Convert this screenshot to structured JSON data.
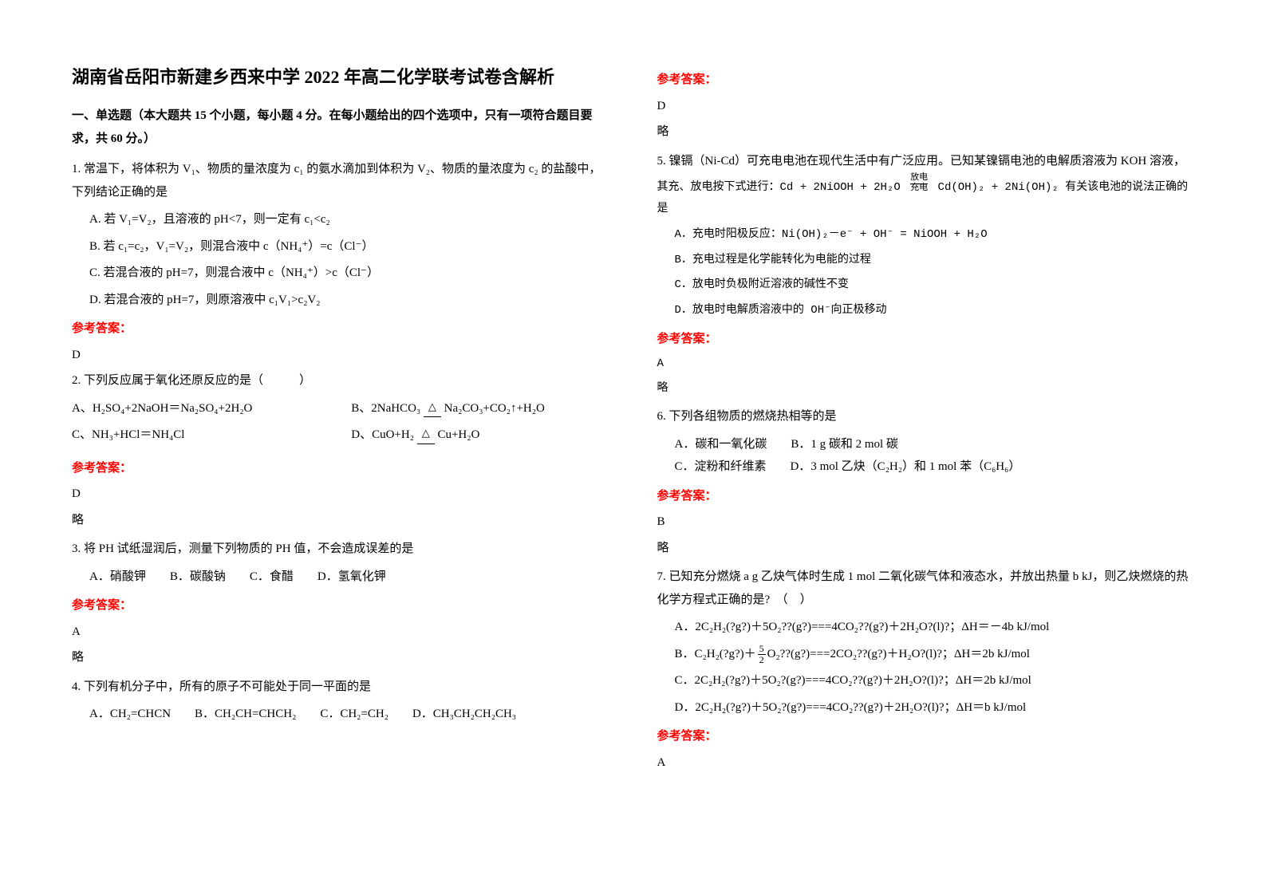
{
  "title": "湖南省岳阳市新建乡西来中学 2022 年高二化学联考试卷含解析",
  "section1": "一、单选题（本大题共 15 个小题，每小题 4 分。在每小题给出的四个选项中，只有一项符合题目要求，共 60 分。）",
  "q1": {
    "text": "1. 常温下，将体积为 V₁、物质的量浓度为 c₁ 的氨水滴加到体积为 V₂、物质的量浓度为 c₂ 的盐酸中，下列结论正确的是",
    "a": "A. 若 V₁=V₂，且溶液的 pH<7，则一定有 c₁<c₂",
    "b": "B. 若 c₁=c₂，V₁=V₂，则混合液中 c（NH₄⁺）=c（Cl⁻）",
    "c": "C. 若混合液的 pH=7，则混合液中 c（NH₄⁺）>c（Cl⁻）",
    "d": "D. 若混合液的 pH=7，则原溶液中 c₁V₁>c₂V₂"
  },
  "answer_label": "参考答案：",
  "q1_ans": "D",
  "q2": {
    "text": "2. 下列反应属于氧化还原反应的是（　　　）",
    "a": "A、H₂SO₄+2NaOH＝Na₂SO₄+2H₂O",
    "b_pre": "B、2NaHCO₃ ",
    "b_post": " Na₂CO₃+CO₂↑+H₂O",
    "c": "C、NH₃+HCl＝NH₄Cl",
    "d_pre": "D、CuO+H₂ ",
    "d_post": " Cu+H₂O"
  },
  "tri": "△",
  "q2_ans": "D",
  "略": "略",
  "q3": {
    "text": "3. 将 PH 试纸湿润后，测量下列物质的 PH 值，不会造成误差的是",
    "a": "A．硝酸钾",
    "b": "B．碳酸钠",
    "c": "C．食醋",
    "d": "D．氢氧化钾"
  },
  "q3_ans": "A",
  "q4": {
    "text": "4. 下列有机分子中，所有的原子不可能处于同一平面的是",
    "a": "A．CH₂=CHCN",
    "b": "B．CH₂CH=CHCH₂",
    "c": "C．CH₂=CH₂",
    "d": "D．CH₃CH₂CH₂CH₃"
  },
  "q4_ans": "D",
  "q5": {
    "text1": "5. 镍镉（Ni-Cd）可充电电池在现代生活中有广泛应用。已知某镍镉电池的电解质溶液为 KOH 溶液，",
    "text2_pre": "其充、放电按下式进行：Cd + 2NiOOH + 2H₂O ",
    "text2_post": " Cd(OH)₂ + 2Ni(OH)₂ 有关该电池的说法正确的是",
    "cond_top": "放电",
    "cond_bot": "充电",
    "a": "A．充电时阳极反应：Ni(OH)₂－e⁻ + OH⁻ = NiOOH + H₂O",
    "b": "B．充电过程是化学能转化为电能的过程",
    "c": "C．放电时负极附近溶液的碱性不变",
    "d": "D．放电时电解质溶液中的 OH⁻向正极移动"
  },
  "q5_ans": "A",
  "q6": {
    "text": "6. 下列各组物质的燃烧热相等的是",
    "a": "A．碳和一氧化碳",
    "b": "B．1 g 碳和 2 mol 碳",
    "c": "C．淀粉和纤维素",
    "d": "D．3 mol 乙炔（C₂H₂）和 1 mol 苯（C₆H₆）"
  },
  "q6_ans": "B",
  "q7": {
    "text": "7. 已知充分燃烧 a g 乙炔气体时生成 1 mol 二氧化碳气体和液态水，并放出热量 b kJ，则乙炔燃烧的热化学方程式正确的是?　（　）",
    "a": "A．2C₂H₂(?g?)＋5O₂??(g?)===4CO₂??(g?)＋2H₂O?(l)?；ΔH＝－4b kJ/mol",
    "b_pre": "B．C₂H₂(?g?)＋",
    "b_num": "5",
    "b_den": "2",
    "b_post": "O₂??(g?)===2CO₂??(g?)＋H₂O?(l)?；ΔH＝2b kJ/mol",
    "c": "C．2C₂H₂(?g?)＋5O₂?(g?)===4CO₂??(g?)＋2H₂O?(l)?；ΔH＝2b kJ/mol",
    "d": "D．2C₂H₂(?g?)＋5O₂?(g?)===4CO₂??(g?)＋2H₂O?(l)?；ΔH＝b kJ/mol"
  },
  "q7_ans": "A"
}
